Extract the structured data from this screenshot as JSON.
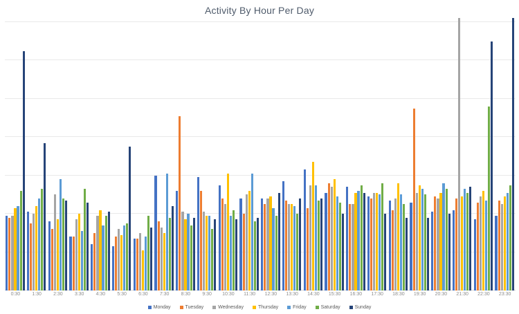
{
  "chart": {
    "title": "Activity By Hour Per Day"
  },
  "chart_data": {
    "type": "bar",
    "title": "Activity By Hour Per Day",
    "xlabel": "",
    "ylabel": "",
    "y_axis_labels": "none visible (unlabeled value axis)",
    "ylim": [
      0,
      7
    ],
    "grid": "horizontal gridlines every 1 unit",
    "legend_position": "bottom",
    "units": "axis units where 1 unit = one gridline interval",
    "notes": "Wednesday 21:30 and Sunday 23:30 bars reach the top of the plot area (clipped at the visible maximum); recorded as 7.15.",
    "categories": [
      "0:30",
      "1:30",
      "2:30",
      "3:30",
      "4:30",
      "5:30",
      "6:30",
      "7:30",
      "8:30",
      "9:30",
      "10:30",
      "11:30",
      "12:30",
      "13:30",
      "14:30",
      "15:30",
      "16:30",
      "17:30",
      "18:30",
      "19:30",
      "20:30",
      "21:30",
      "22:30",
      "23:30"
    ],
    "series": [
      {
        "name": "Monday",
        "color": "#4472C4",
        "values": [
          1.95,
          2.05,
          1.8,
          1.4,
          1.2,
          1.15,
          1.35,
          3.0,
          2.6,
          2.95,
          2.75,
          2.4,
          2.4,
          2.85,
          3.15,
          2.55,
          2.7,
          2.45,
          2.35,
          2.3,
          2.05,
          2.1,
          1.85,
          1.95
        ]
      },
      {
        "name": "Tuesday",
        "color": "#ED7D31",
        "values": [
          1.9,
          1.75,
          1.6,
          1.4,
          1.5,
          1.4,
          1.35,
          1.8,
          4.55,
          2.6,
          2.4,
          2.0,
          2.25,
          2.35,
          2.15,
          2.8,
          2.25,
          2.4,
          2.1,
          4.75,
          2.45,
          2.4,
          2.3,
          2.35
        ]
      },
      {
        "name": "Wednesday",
        "color": "#A5A5A5",
        "values": [
          1.95,
          2.0,
          2.5,
          1.85,
          1.95,
          1.6,
          1.5,
          1.65,
          2.05,
          2.05,
          2.25,
          2.5,
          2.4,
          2.25,
          2.75,
          2.7,
          2.25,
          2.55,
          2.4,
          2.55,
          2.4,
          7.15,
          2.45,
          2.25
        ]
      },
      {
        "name": "Thursday",
        "color": "#FFC000",
        "values": [
          2.15,
          2.2,
          1.85,
          2.0,
          2.1,
          1.45,
          1.05,
          1.5,
          1.85,
          1.95,
          3.05,
          2.6,
          2.45,
          2.25,
          3.35,
          2.9,
          2.55,
          2.55,
          2.8,
          2.75,
          2.55,
          2.45,
          2.6,
          2.45
        ]
      },
      {
        "name": "Friday",
        "color": "#5B9BD5",
        "values": [
          2.2,
          2.4,
          2.9,
          1.55,
          1.7,
          1.7,
          1.4,
          3.05,
          2.0,
          1.95,
          1.95,
          3.05,
          2.15,
          2.2,
          2.75,
          2.45,
          2.6,
          2.5,
          2.5,
          2.65,
          2.8,
          2.65,
          2.35,
          2.55
        ]
      },
      {
        "name": "Saturday",
        "color": "#70AD47",
        "values": [
          2.6,
          2.65,
          2.4,
          2.65,
          1.95,
          1.75,
          1.95,
          1.9,
          1.7,
          1.6,
          2.1,
          1.8,
          1.95,
          2.0,
          2.35,
          2.3,
          2.75,
          2.8,
          2.25,
          2.5,
          2.65,
          2.55,
          4.8,
          2.75
        ]
      },
      {
        "name": "Sunday",
        "color": "#264478",
        "values": [
          6.25,
          3.85,
          2.35,
          2.3,
          2.05,
          3.75,
          1.65,
          2.2,
          1.9,
          1.85,
          1.85,
          1.9,
          2.55,
          2.4,
          2.4,
          2.0,
          2.55,
          2.0,
          1.9,
          1.9,
          2.0,
          2.7,
          6.5,
          7.15
        ]
      }
    ]
  }
}
